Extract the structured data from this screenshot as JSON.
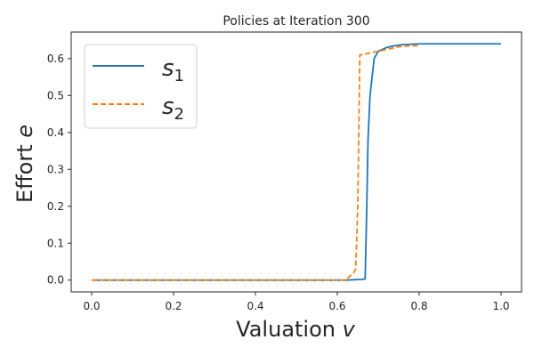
{
  "chart_data": {
    "type": "line",
    "title": "Policies at Iteration 300",
    "xlabel": {
      "text": "Valuation ",
      "var": "v"
    },
    "ylabel": {
      "text": "Effort ",
      "var": "e"
    },
    "xlim": [
      -0.05,
      1.05
    ],
    "ylim": [
      -0.032,
      0.672
    ],
    "xticks": [
      0.0,
      0.2,
      0.4,
      0.6,
      0.8,
      1.0
    ],
    "xtick_labels": [
      "0.0",
      "0.2",
      "0.4",
      "0.6",
      "0.8",
      "1.0"
    ],
    "yticks": [
      0.0,
      0.1,
      0.2,
      0.3,
      0.4,
      0.5,
      0.6
    ],
    "ytick_labels": [
      "0.0",
      "0.1",
      "0.2",
      "0.3",
      "0.4",
      "0.5",
      "0.6"
    ],
    "grid": false,
    "legend_position": "top-left",
    "series": [
      {
        "name": "s",
        "name_sub": "1",
        "color": "#1f77b4",
        "dash": "solid",
        "x": [
          0.0,
          0.1,
          0.2,
          0.3,
          0.4,
          0.5,
          0.6,
          0.62,
          0.64,
          0.66,
          0.668,
          0.672,
          0.675,
          0.68,
          0.685,
          0.69,
          0.7,
          0.72,
          0.74,
          0.76,
          0.8,
          0.85,
          0.9,
          0.95,
          1.0
        ],
        "y": [
          0.0,
          0.0,
          0.0,
          0.0,
          0.0,
          0.0,
          0.0,
          0.0,
          0.001,
          0.002,
          0.003,
          0.2,
          0.38,
          0.5,
          0.55,
          0.6,
          0.62,
          0.63,
          0.635,
          0.638,
          0.64,
          0.64,
          0.64,
          0.64,
          0.64
        ]
      },
      {
        "name": "s",
        "name_sub": "2",
        "color": "#ff7f0e",
        "dash": "dashed",
        "x": [
          0.0,
          0.1,
          0.2,
          0.3,
          0.4,
          0.5,
          0.6,
          0.62,
          0.63,
          0.64,
          0.645,
          0.65,
          0.655,
          0.67,
          0.7,
          0.72,
          0.75,
          0.78,
          0.8
        ],
        "y": [
          0.0,
          0.0,
          0.0,
          0.0,
          0.0,
          0.0,
          0.0,
          0.0,
          0.01,
          0.02,
          0.03,
          0.2,
          0.61,
          0.613,
          0.62,
          0.625,
          0.632,
          0.635,
          0.635
        ]
      }
    ]
  }
}
